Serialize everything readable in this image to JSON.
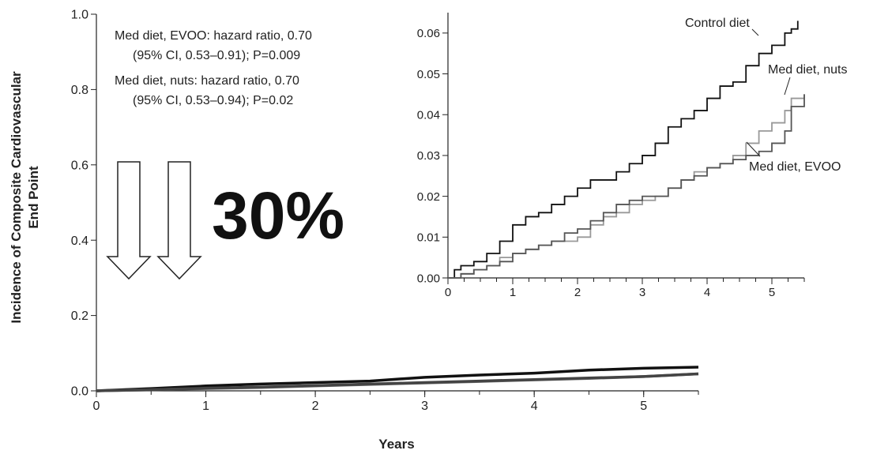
{
  "chart_data": [
    {
      "type": "line",
      "xlabel": "Years",
      "ylabel_lines": [
        "Incidence of Composite Cardiovascular",
        "End Point"
      ],
      "xlim": [
        0,
        5.5
      ],
      "ylim": [
        0,
        1.0
      ],
      "x_ticks": [
        0,
        1,
        2,
        3,
        4,
        5
      ],
      "x_tick_labels": [
        "0",
        "1",
        "2",
        "3",
        "4",
        "5"
      ],
      "y_ticks": [
        0,
        0.2,
        0.4,
        0.6,
        0.8,
        1.0
      ],
      "y_tick_labels": [
        "0.0",
        "0.2",
        "0.4",
        "0.6",
        "0.8",
        "1.0"
      ],
      "grid": false,
      "annotations": [
        "Med diet, EVOO: hazard ratio, 0.70",
        "(95% CI, 0.53–0.91); P=0.009",
        "Med diet, nuts: hazard ratio, 0.70",
        "(95% CI, 0.53–0.94);  P=0.02"
      ],
      "big_label": "30%",
      "series": [
        {
          "name": "Control diet",
          "color": "#111111",
          "x": [
            0,
            0.5,
            1,
            1.5,
            2,
            2.5,
            3,
            3.5,
            4,
            4.5,
            5,
            5.5
          ],
          "y": [
            0,
            0.006,
            0.013,
            0.018,
            0.022,
            0.026,
            0.036,
            0.042,
            0.047,
            0.055,
            0.06,
            0.063
          ]
        },
        {
          "name": "Med diet, nuts",
          "color": "#777777",
          "x": [
            0,
            0.5,
            1,
            1.5,
            2,
            2.5,
            3,
            3.5,
            4,
            4.5,
            5,
            5.5
          ],
          "y": [
            0,
            0.003,
            0.006,
            0.009,
            0.013,
            0.017,
            0.021,
            0.025,
            0.029,
            0.033,
            0.038,
            0.045
          ]
        },
        {
          "name": "Med diet, EVOO",
          "color": "#444444",
          "x": [
            0,
            0.5,
            1,
            1.5,
            2,
            2.5,
            3,
            3.5,
            4,
            4.5,
            5,
            5.5
          ],
          "y": [
            0,
            0.003,
            0.007,
            0.01,
            0.014,
            0.018,
            0.022,
            0.026,
            0.03,
            0.034,
            0.038,
            0.045
          ]
        }
      ]
    },
    {
      "type": "line",
      "xlim": [
        0,
        5.5
      ],
      "ylim": [
        0,
        0.065
      ],
      "x_ticks": [
        0,
        1,
        2,
        3,
        4,
        5
      ],
      "x_tick_labels": [
        "0",
        "1",
        "2",
        "3",
        "4",
        "5"
      ],
      "y_ticks": [
        0,
        0.01,
        0.02,
        0.03,
        0.04,
        0.05,
        0.06
      ],
      "y_tick_labels": [
        "0.00",
        "0.01",
        "0.02",
        "0.03",
        "0.04",
        "0.05",
        "0.06"
      ],
      "grid": false,
      "series": [
        {
          "name": "Control diet",
          "color": "#111111",
          "x": [
            0,
            0.1,
            0.2,
            0.4,
            0.6,
            0.8,
            1.0,
            1.2,
            1.4,
            1.6,
            1.8,
            2.0,
            2.2,
            2.4,
            2.6,
            2.8,
            3.0,
            3.2,
            3.4,
            3.6,
            3.8,
            4.0,
            4.2,
            4.4,
            4.6,
            4.8,
            5.0,
            5.2,
            5.3,
            5.4
          ],
          "y": [
            0,
            0.002,
            0.003,
            0.004,
            0.006,
            0.009,
            0.013,
            0.015,
            0.016,
            0.018,
            0.02,
            0.022,
            0.024,
            0.024,
            0.026,
            0.028,
            0.03,
            0.033,
            0.037,
            0.039,
            0.041,
            0.044,
            0.047,
            0.048,
            0.052,
            0.055,
            0.057,
            0.06,
            0.061,
            0.063
          ]
        },
        {
          "name": "Med diet, nuts",
          "color": "#999999",
          "x": [
            0,
            0.2,
            0.4,
            0.6,
            0.8,
            1.0,
            1.2,
            1.4,
            1.6,
            1.8,
            2.0,
            2.2,
            2.4,
            2.6,
            2.8,
            3.0,
            3.2,
            3.4,
            3.6,
            3.8,
            4.0,
            4.2,
            4.4,
            4.6,
            4.8,
            5.0,
            5.2,
            5.3,
            5.5
          ],
          "y": [
            0,
            0.001,
            0.002,
            0.003,
            0.005,
            0.006,
            0.007,
            0.008,
            0.009,
            0.009,
            0.01,
            0.013,
            0.015,
            0.016,
            0.018,
            0.019,
            0.02,
            0.022,
            0.024,
            0.026,
            0.027,
            0.028,
            0.03,
            0.033,
            0.036,
            0.038,
            0.041,
            0.044,
            0.045
          ]
        },
        {
          "name": "Med diet, EVOO",
          "color": "#555555",
          "x": [
            0,
            0.2,
            0.4,
            0.6,
            0.8,
            1.0,
            1.2,
            1.4,
            1.6,
            1.8,
            2.0,
            2.2,
            2.4,
            2.6,
            2.8,
            3.0,
            3.2,
            3.4,
            3.6,
            3.8,
            4.0,
            4.2,
            4.4,
            4.6,
            4.8,
            5.0,
            5.2,
            5.3,
            5.5
          ],
          "y": [
            0,
            0.001,
            0.002,
            0.003,
            0.004,
            0.006,
            0.007,
            0.008,
            0.009,
            0.011,
            0.012,
            0.014,
            0.016,
            0.018,
            0.019,
            0.02,
            0.02,
            0.022,
            0.024,
            0.025,
            0.027,
            0.028,
            0.029,
            0.03,
            0.031,
            0.033,
            0.036,
            0.042,
            0.045
          ]
        }
      ],
      "series_labels": [
        "Control diet",
        "Med diet, nuts",
        "Med diet, EVOO"
      ]
    }
  ]
}
